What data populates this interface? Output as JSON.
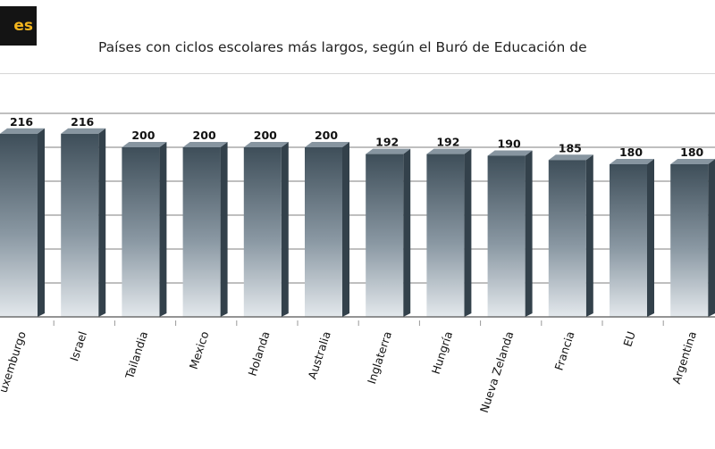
{
  "badge": {
    "text": "es"
  },
  "chart_data": {
    "type": "bar",
    "title": "Países con ciclos escolares más largos, según el Buró de Educación de",
    "xlabel": "",
    "ylabel": "",
    "categories": [
      "Luxemburgo",
      "Israel",
      "Tailandia",
      "Mexico",
      "Holanda",
      "Australia",
      "Inglaterra",
      "Hungría",
      "Nueva Zelanda",
      "Francia",
      "EU",
      "Argentina"
    ],
    "category_labels": [
      "uxemburgo",
      "Israel",
      "Tailandia",
      "Mexico",
      "Holanda",
      "Australia",
      "Inglaterra",
      "Hungría",
      "Nueva Zelanda",
      "Francia",
      "EU",
      "Argentina"
    ],
    "values": [
      216,
      216,
      200,
      200,
      200,
      200,
      192,
      192,
      190,
      185,
      180,
      180
    ],
    "value_labels": [
      "216",
      "216",
      "200",
      "200",
      "200",
      "200",
      "192",
      "192",
      "190",
      "185",
      "180",
      "180"
    ],
    "ylim": [
      0,
      240
    ],
    "grid": true,
    "bar_style": "3d-column",
    "colors": {
      "bar_top": "#3e4e59",
      "bar_bottom": "#e3e8ec",
      "bar_side": "#33414b",
      "bar_cap": "#8795a0",
      "grid": "#7f7f7f",
      "badge_bg": "#141414",
      "badge_text": "#f3b51d"
    }
  }
}
